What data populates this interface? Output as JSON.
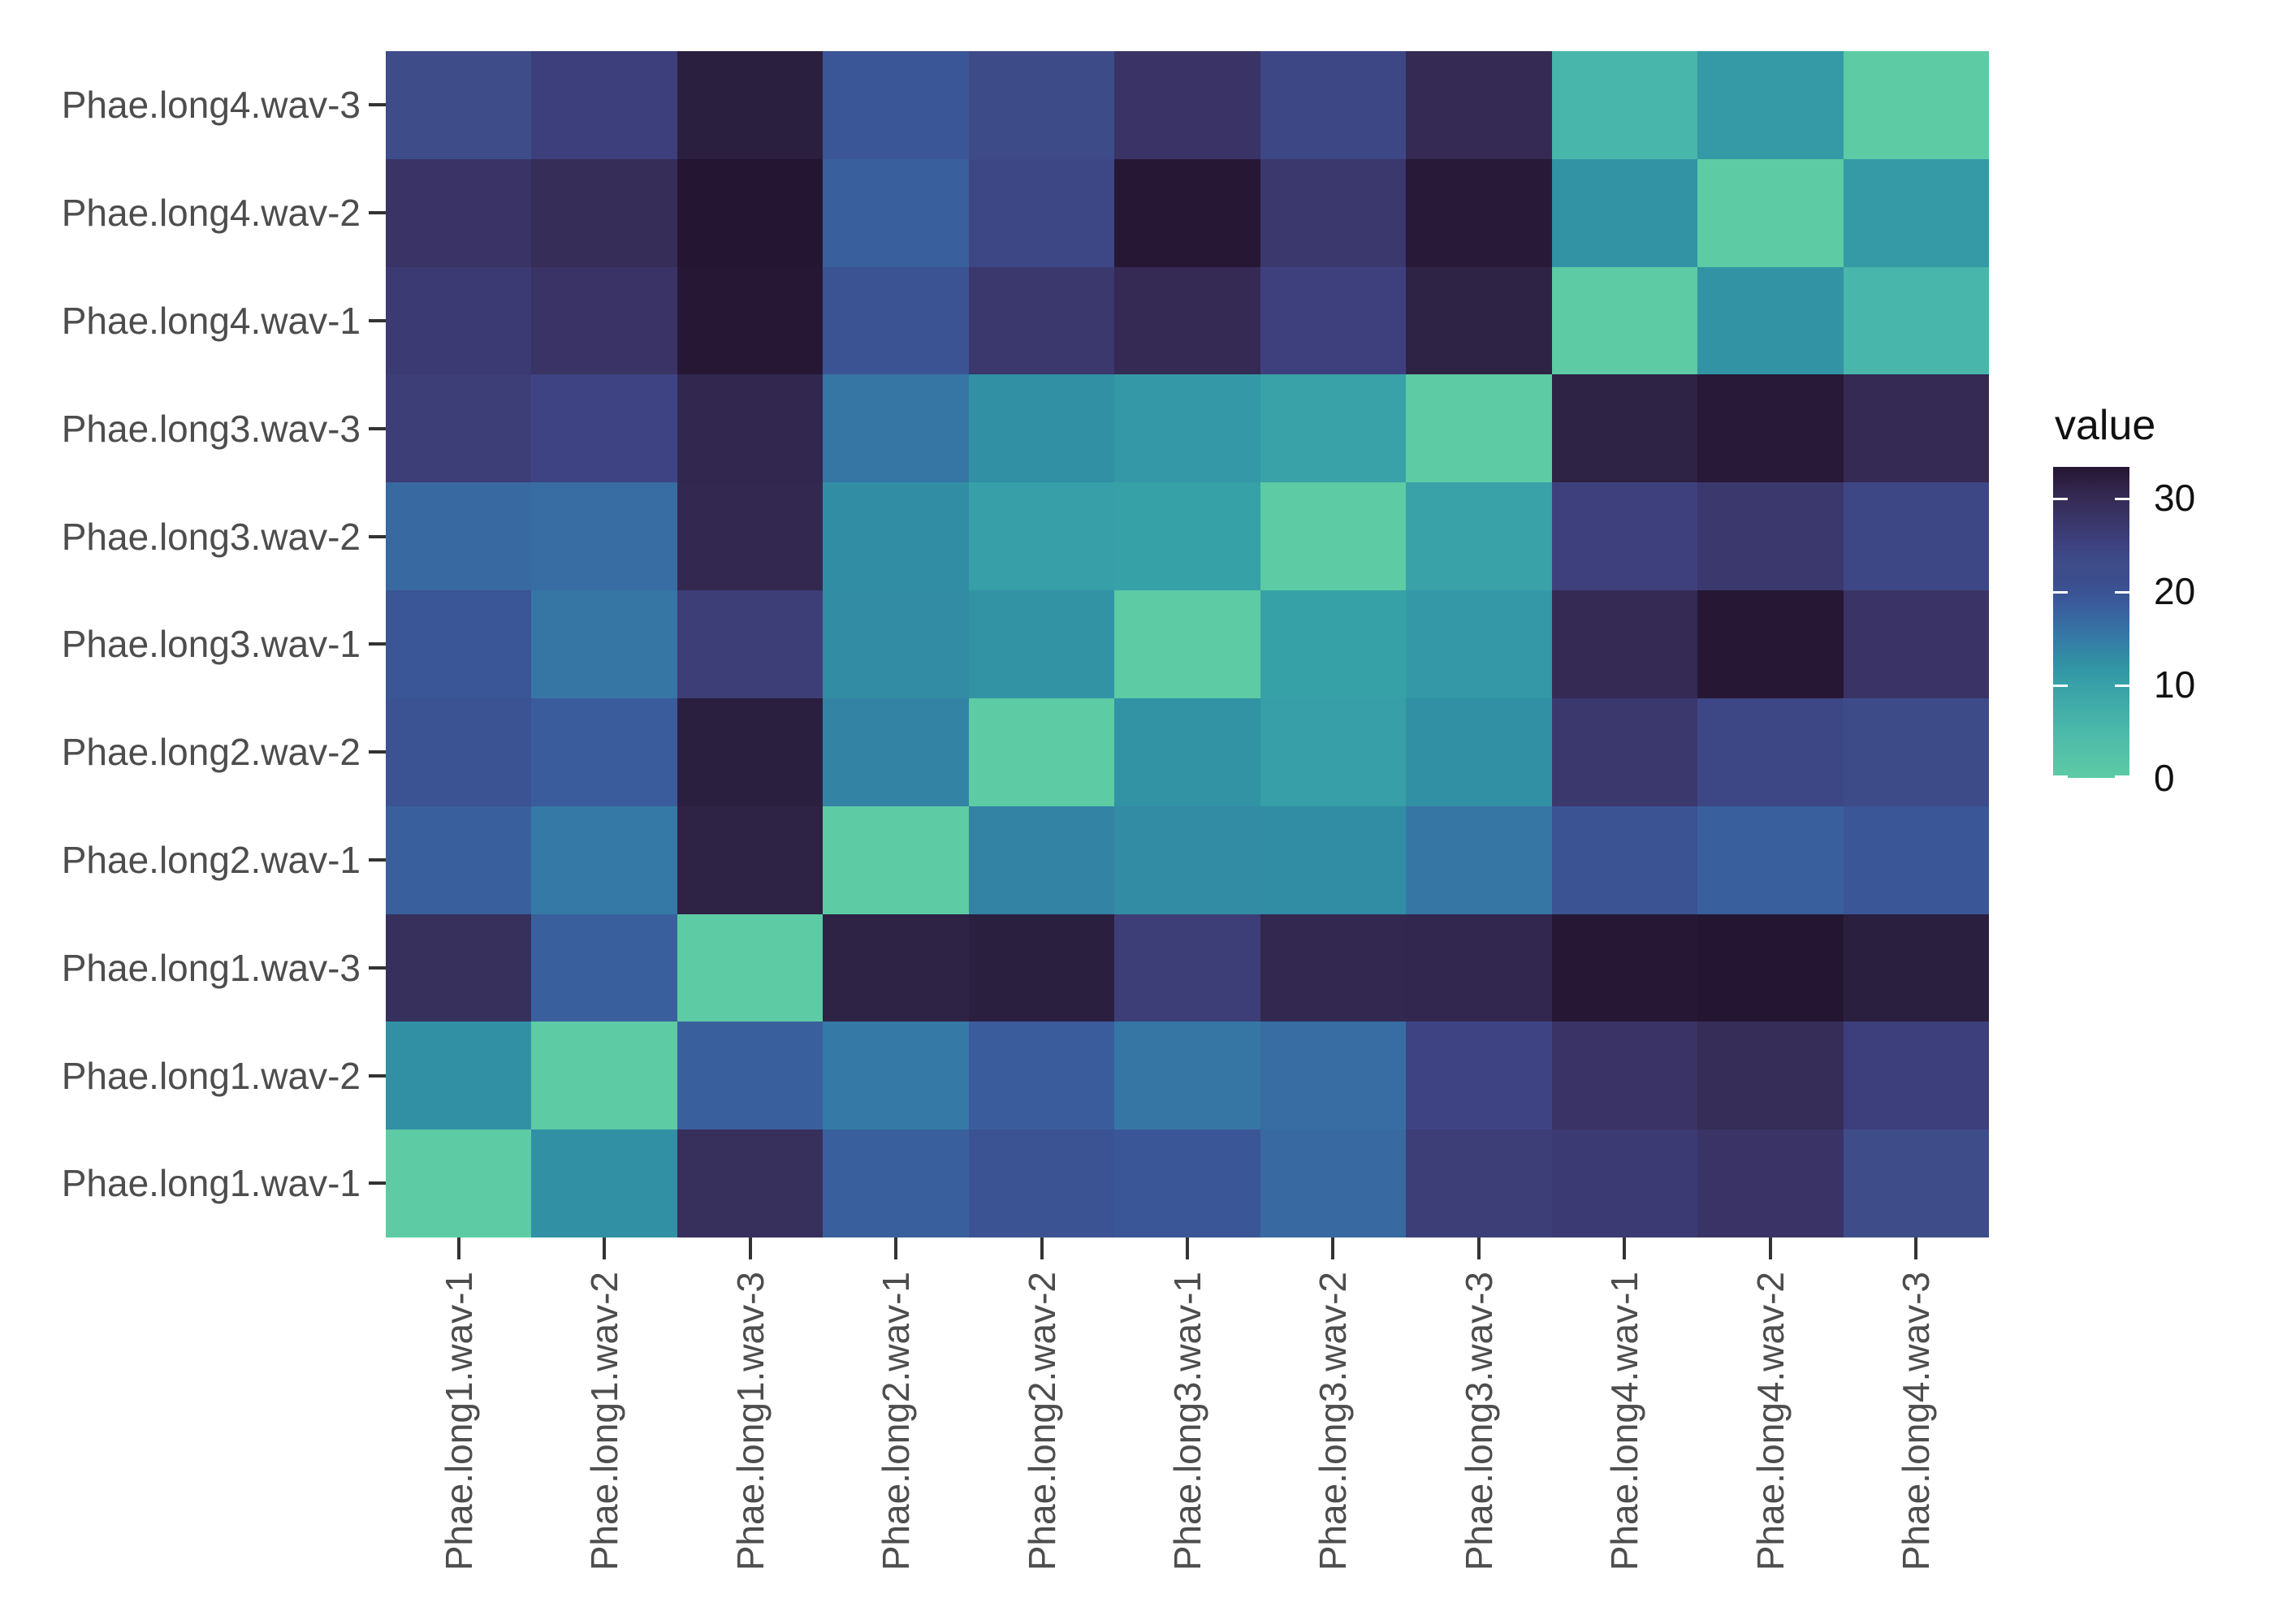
{
  "figure": {
    "background": "#ffffff",
    "axis_label_color": "#4d4d4d",
    "tick_color": "#333333"
  },
  "chart_data": {
    "type": "heatmap",
    "title": "",
    "xlabel": "",
    "ylabel": "",
    "grid": false,
    "x_categories": [
      "Phae.long1.wav-1",
      "Phae.long1.wav-2",
      "Phae.long1.wav-3",
      "Phae.long2.wav-1",
      "Phae.long2.wav-2",
      "Phae.long3.wav-1",
      "Phae.long3.wav-2",
      "Phae.long3.wav-3",
      "Phae.long4.wav-1",
      "Phae.long4.wav-2",
      "Phae.long4.wav-3"
    ],
    "y_categories": [
      "Phae.long4.wav-3",
      "Phae.long4.wav-2",
      "Phae.long4.wav-1",
      "Phae.long3.wav-3",
      "Phae.long3.wav-2",
      "Phae.long3.wav-1",
      "Phae.long2.wav-2",
      "Phae.long2.wav-1",
      "Phae.long1.wav-3",
      "Phae.long1.wav-2",
      "Phae.long1.wav-1"
    ],
    "values": [
      [
        23,
        25.5,
        32,
        19.5,
        23.2,
        28,
        24,
        30,
        5.7,
        11,
        0
      ],
      [
        28,
        29.5,
        33.3,
        18.2,
        24,
        33,
        27,
        32.8,
        12,
        0,
        11
      ],
      [
        26.5,
        28,
        33,
        20,
        27,
        30,
        25.2,
        31.5,
        0,
        12,
        5.7
      ],
      [
        26,
        24.5,
        30.5,
        15.5,
        12.5,
        11.3,
        9.7,
        0,
        31.5,
        32.8,
        30
      ],
      [
        17,
        16.5,
        30.3,
        12.8,
        10.3,
        10,
        0,
        9.7,
        25.2,
        27,
        24
      ],
      [
        19.5,
        15.5,
        26,
        13,
        12,
        0,
        10,
        11.3,
        30,
        33,
        28
      ],
      [
        20,
        18.5,
        32,
        14,
        0,
        12,
        10.3,
        12.5,
        27,
        24,
        23.2
      ],
      [
        18,
        15,
        31.5,
        0,
        14,
        13,
        12.8,
        15.5,
        20,
        18.2,
        19.5
      ],
      [
        29,
        18,
        0,
        31.5,
        32,
        26,
        30.3,
        30.5,
        33,
        33.3,
        32
      ],
      [
        12.5,
        0,
        18,
        15,
        18.5,
        15.5,
        16.5,
        24.5,
        28,
        29.5,
        25.5
      ],
      [
        0,
        12.5,
        29,
        18,
        20,
        19.5,
        17,
        26,
        26.5,
        28,
        23
      ]
    ],
    "legend": {
      "title": "value",
      "tick_labels": [
        "30",
        "20",
        "10",
        "0"
      ],
      "tick_values": [
        30,
        20,
        10,
        0
      ],
      "domain": [
        0,
        33.3
      ],
      "position": "right"
    },
    "colormap": {
      "name": "mako-reversed",
      "stops": [
        [
          0,
          "#5DCBA4"
        ],
        [
          5,
          "#4BB9AA"
        ],
        [
          10,
          "#37A1A8"
        ],
        [
          12.5,
          "#3190A4"
        ],
        [
          15,
          "#357AA6"
        ],
        [
          18.5,
          "#3A5C9C"
        ],
        [
          21,
          "#3B4D8C"
        ],
        [
          23,
          "#3E4C8A"
        ],
        [
          25,
          "#3E4180"
        ],
        [
          27,
          "#3B386E"
        ],
        [
          29.5,
          "#362D58"
        ],
        [
          31.5,
          "#2E2245"
        ],
        [
          33.3,
          "#241632"
        ]
      ]
    }
  }
}
